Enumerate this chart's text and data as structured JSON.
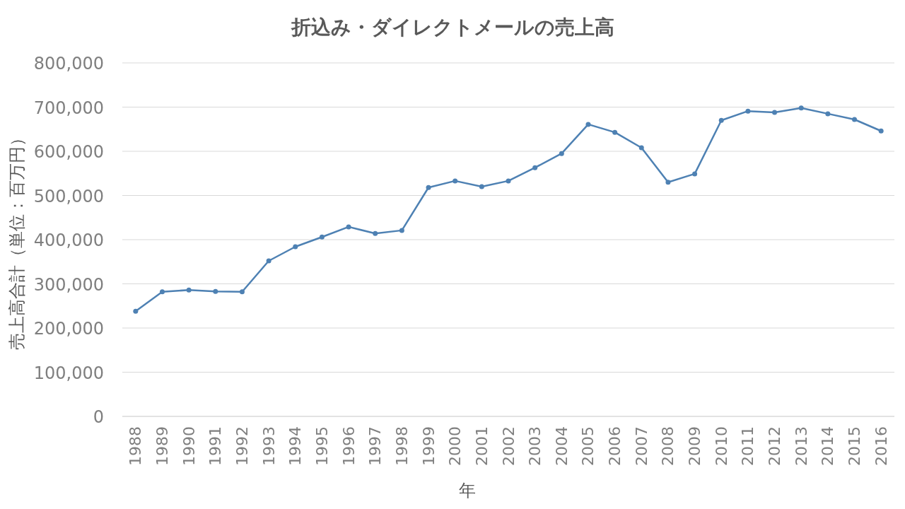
{
  "chart_data": {
    "type": "line",
    "title": "折込み・ダイレクトメールの売上高",
    "xlabel": "年",
    "ylabel": "売上高合計（単位：百万円）",
    "categories": [
      "1988",
      "1989",
      "1990",
      "1991",
      "1992",
      "1993",
      "1994",
      "1995",
      "1996",
      "1997",
      "1998",
      "1999",
      "2000",
      "2001",
      "2002",
      "2003",
      "2004",
      "2005",
      "2006",
      "2007",
      "2008",
      "2009",
      "2010",
      "2011",
      "2012",
      "2013",
      "2014",
      "2015",
      "2016"
    ],
    "values": [
      238000,
      282000,
      286000,
      283000,
      282000,
      352000,
      384000,
      406000,
      429000,
      414000,
      421000,
      518000,
      533000,
      520000,
      533000,
      563000,
      595000,
      661000,
      643000,
      608000,
      530000,
      549000,
      670000,
      691000,
      688000,
      698000,
      685000,
      672000,
      646000
    ],
    "color": "#4e81b3",
    "ylim": [
      0,
      800000
    ],
    "yticks": [
      0,
      {
        "value": 100000,
        "label": "100,000"
      },
      {
        "value": 200000,
        "label": "200,000"
      },
      {
        "value": 300000,
        "label": "300,000"
      },
      {
        "value": 400000,
        "label": "400,000"
      },
      {
        "value": 500000,
        "label": "500,000"
      },
      {
        "value": 600000,
        "label": "600,000"
      },
      {
        "value": 700000,
        "label": "700,000"
      },
      {
        "value": 800000,
        "label": "800,000"
      }
    ],
    "grid": "y",
    "marker": "circle",
    "line_style": "solid"
  }
}
